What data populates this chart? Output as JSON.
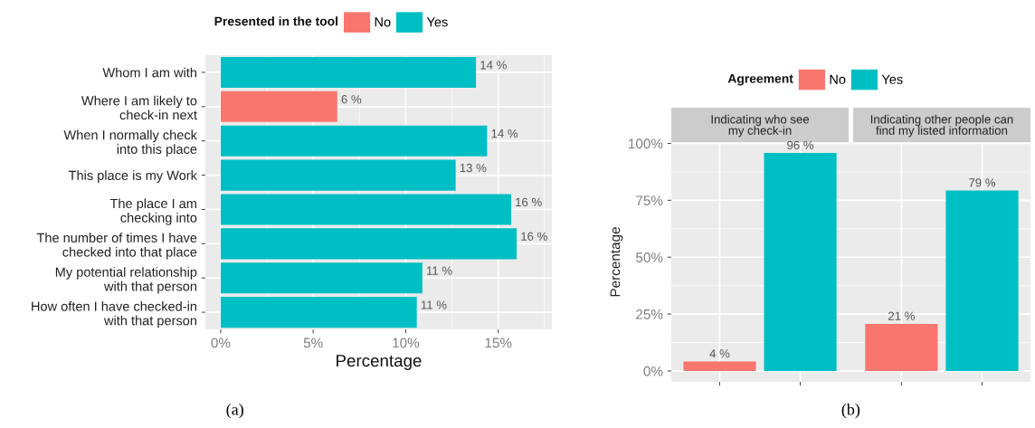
{
  "chart_data": [
    {
      "type": "bar",
      "orientation": "horizontal",
      "xlabel": "Percentage",
      "legend_title": "Presented in the tool",
      "legend": "top",
      "grid": true,
      "categories": [
        "Whom I am with",
        "Where I am likely to\ncheck-in next",
        "When I normally check\ninto this place",
        "This place is my Work",
        "The place I am\nchecking into",
        "The number of times I have\nchecked into that place",
        "My potential relationship\nwith that person",
        "How often I have checked-in\nwith that person"
      ],
      "series": [
        {
          "name": "No",
          "color": "#f8766d",
          "values": [
            null,
            6.3,
            null,
            null,
            null,
            null,
            null,
            null
          ],
          "value_labels": [
            null,
            "6 %",
            null,
            null,
            null,
            null,
            null,
            null
          ]
        },
        {
          "name": "Yes",
          "color": "#00bfc4",
          "values": [
            13.8,
            null,
            14.4,
            12.7,
            15.7,
            16.0,
            10.9,
            10.6
          ],
          "value_labels": [
            "14 %",
            null,
            "14 %",
            "13 %",
            "16 %",
            "16 %",
            "11 %",
            "11 %"
          ]
        }
      ],
      "xlim": [
        -0.83,
        17.9
      ],
      "xticks": [
        {
          "value": 0,
          "label": "0%"
        },
        {
          "value": 5,
          "label": "5%"
        },
        {
          "value": 10,
          "label": "10%"
        },
        {
          "value": 15,
          "label": "15%"
        }
      ],
      "annotations": [
        "(a)"
      ]
    },
    {
      "type": "bar",
      "ylabel": "Percentage",
      "legend_title": "Agreement",
      "legend": "top",
      "grid": true,
      "categories": [
        "Indicating who see\nmy check-in",
        "Indicating other people can\nfind my listed information"
      ],
      "series": [
        {
          "name": "No",
          "color": "#f8766d",
          "values": [
            4.2,
            20.7
          ],
          "value_labels": [
            "4 %",
            "21 %"
          ]
        },
        {
          "name": "Yes",
          "color": "#00bfc4",
          "values": [
            95.8,
            79.3
          ],
          "value_labels": [
            "96 %",
            "79 %"
          ]
        }
      ],
      "ylim": [
        -4.8,
        100.6
      ],
      "yticks": [
        {
          "value": 0,
          "label": "0%"
        },
        {
          "value": 25,
          "label": "25%"
        },
        {
          "value": 50,
          "label": "50%"
        },
        {
          "value": 75,
          "label": "75%"
        },
        {
          "value": 100,
          "label": "100%"
        }
      ],
      "annotations": [
        "(b)"
      ]
    }
  ]
}
